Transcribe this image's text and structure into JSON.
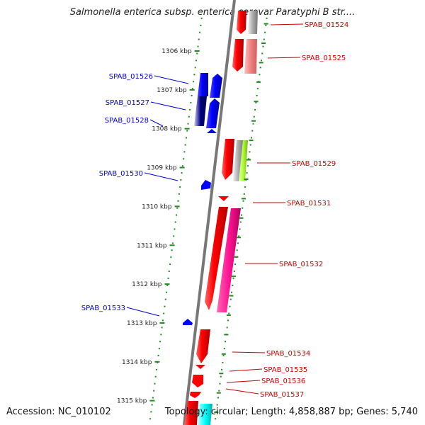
{
  "title": "Salmonella enterica subsp. enterica serovar Paratyphi B str....",
  "footer": {
    "accession": "Accession: NC_010102",
    "topology": "Topology: circular; Length: 4,858,887 bp; Genes: 5,740"
  },
  "scale_unit": "kbp",
  "ticks": [
    {
      "kbp": 1306,
      "label": "1306 kbp"
    },
    {
      "kbp": 1307,
      "label": "1307 kbp"
    },
    {
      "kbp": 1308,
      "label": "1308 kbp"
    },
    {
      "kbp": 1309,
      "label": "1309 kbp"
    },
    {
      "kbp": 1310,
      "label": "1310 kbp"
    },
    {
      "kbp": 1311,
      "label": "1311 kbp"
    },
    {
      "kbp": 1312,
      "label": "1312 kbp"
    },
    {
      "kbp": 1313,
      "label": "1313 kbp"
    },
    {
      "kbp": 1314,
      "label": "1314 kbp"
    },
    {
      "kbp": 1315,
      "label": "1315 kbp"
    }
  ],
  "colors": {
    "forward_strand": "#ff0000",
    "forward_label": "#cc0000",
    "reverse_strand": "#0000ff",
    "reverse_label": "#0000cc",
    "backbone": "#777777",
    "ruler": "#228822",
    "pink": "#ff1493",
    "salmon": "#f08080",
    "lime": "#adff2f",
    "cyan": "#00ffff"
  },
  "genes": [
    {
      "id": "SPAB_01524",
      "strand": "forward",
      "start_kbp": 1304.5,
      "end_kbp": 1305.3
    },
    {
      "id": "SPAB_01525",
      "strand": "forward",
      "start_kbp": 1305.6,
      "end_kbp": 1306.45
    },
    {
      "id": "SPAB_01526",
      "strand": "reverse",
      "start_kbp": 1306.65,
      "end_kbp": 1307.25
    },
    {
      "id": "SPAB_01527",
      "strand": "reverse",
      "start_kbp": 1307.25,
      "end_kbp": 1307.95
    },
    {
      "id": "SPAB_01528",
      "strand": "reverse",
      "start_kbp": 1307.98,
      "end_kbp": 1308.1
    },
    {
      "id": "SPAB_01529",
      "strand": "forward",
      "start_kbp": 1308.25,
      "end_kbp": 1309.3
    },
    {
      "id": "SPAB_01530",
      "strand": "reverse",
      "start_kbp": 1309.35,
      "end_kbp": 1309.62
    },
    {
      "id": "SPAB_01531",
      "strand": "forward",
      "start_kbp": 1309.68,
      "end_kbp": 1309.8
    },
    {
      "id": "SPAB_01532",
      "strand": "forward",
      "start_kbp": 1310.0,
      "end_kbp": 1312.7
    },
    {
      "id": "SPAB_01533",
      "strand": "reverse",
      "start_kbp": 1312.9,
      "end_kbp": 1313.1
    },
    {
      "id": "SPAB_01534",
      "strand": "forward",
      "start_kbp": 1313.2,
      "end_kbp": 1314.0
    },
    {
      "id": "SPAB_01535",
      "strand": "forward",
      "start_kbp": 1314.05,
      "end_kbp": 1314.18
    },
    {
      "id": "SPAB_01536",
      "strand": "forward",
      "start_kbp": 1314.3,
      "end_kbp": 1314.62
    },
    {
      "id": "SPAB_01537",
      "strand": "forward",
      "start_kbp": 1314.75,
      "end_kbp": 1314.92
    }
  ]
}
